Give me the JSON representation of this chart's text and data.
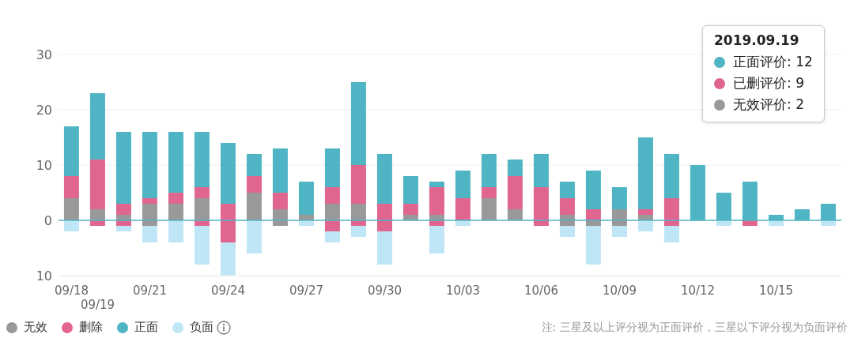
{
  "chart_data": {
    "type": "bar",
    "stacked": true,
    "categories": [
      "09/18",
      "09/19",
      null,
      "09/21",
      null,
      null,
      "09/24",
      null,
      null,
      "09/27",
      null,
      null,
      "09/30",
      null,
      null,
      "10/03",
      null,
      null,
      "10/06",
      null,
      null,
      "10/09",
      null,
      null,
      "10/12",
      null,
      null,
      "10/15",
      null,
      null
    ],
    "series": [
      {
        "name": "无效",
        "color": "#999999",
        "values": [
          4,
          2,
          1,
          3,
          3,
          4,
          null,
          5,
          2,
          1,
          3,
          3,
          null,
          1,
          1,
          null,
          4,
          2,
          null,
          1,
          null,
          2,
          1,
          null,
          null,
          null,
          null,
          null,
          null,
          null
        ]
      },
      {
        "name": "删除",
        "color": "#e0668f",
        "values": [
          4,
          9,
          2,
          1,
          2,
          2,
          3,
          3,
          3,
          null,
          3,
          7,
          3,
          2,
          5,
          4,
          2,
          6,
          6,
          3,
          2,
          null,
          1,
          4,
          null,
          null,
          null,
          null,
          null,
          null
        ]
      },
      {
        "name": "正面",
        "color": "#4fb5c4",
        "values": [
          9,
          12,
          13,
          12,
          11,
          10,
          11,
          4,
          8,
          6,
          7,
          15,
          9,
          5,
          1,
          5,
          6,
          3,
          6,
          3,
          7,
          4,
          13,
          8,
          10,
          5,
          7,
          1,
          2,
          3
        ]
      },
      {
        "color": "#999999",
        "values": [
          null,
          null,
          null,
          -1,
          null,
          null,
          null,
          null,
          -1,
          null,
          null,
          null,
          null,
          null,
          null,
          null,
          null,
          null,
          null,
          -1,
          -1,
          -1,
          null,
          null,
          null,
          null,
          null,
          null,
          null,
          null
        ]
      },
      {
        "color": "#e0668f",
        "values": [
          null,
          -1,
          -1,
          null,
          null,
          -1,
          -4,
          null,
          null,
          null,
          -2,
          -1,
          -2,
          null,
          -1,
          null,
          null,
          null,
          -1,
          null,
          null,
          null,
          null,
          -1,
          null,
          null,
          -1,
          null,
          null,
          null
        ]
      },
      {
        "name": "负面",
        "color": "#bfe6f6",
        "values": [
          -2,
          null,
          -1,
          -3,
          -4,
          -7,
          -6,
          -6,
          null,
          -1,
          -2,
          -2,
          -6,
          null,
          -5,
          -1,
          null,
          null,
          null,
          -2,
          -7,
          -2,
          -2,
          -3,
          null,
          -1,
          null,
          -1,
          null,
          -1
        ]
      }
    ],
    "ylim": [
      -10,
      30
    ],
    "yticks": [
      {
        "value": -10,
        "label": "10"
      },
      0,
      10,
      20,
      30
    ],
    "grid": "y",
    "legend": "bottom left",
    "ref_lines": [
      {
        "axis": "y",
        "value": 0,
        "color": "#4fb5c4"
      }
    ],
    "annotations": [
      "2019.09.19",
      "正面评价: 12",
      "已删评价: 9",
      "无效评价: 2",
      "注: 三星及以上评分视为正面评价，三星以下评分视为负面评价"
    ]
  }
}
